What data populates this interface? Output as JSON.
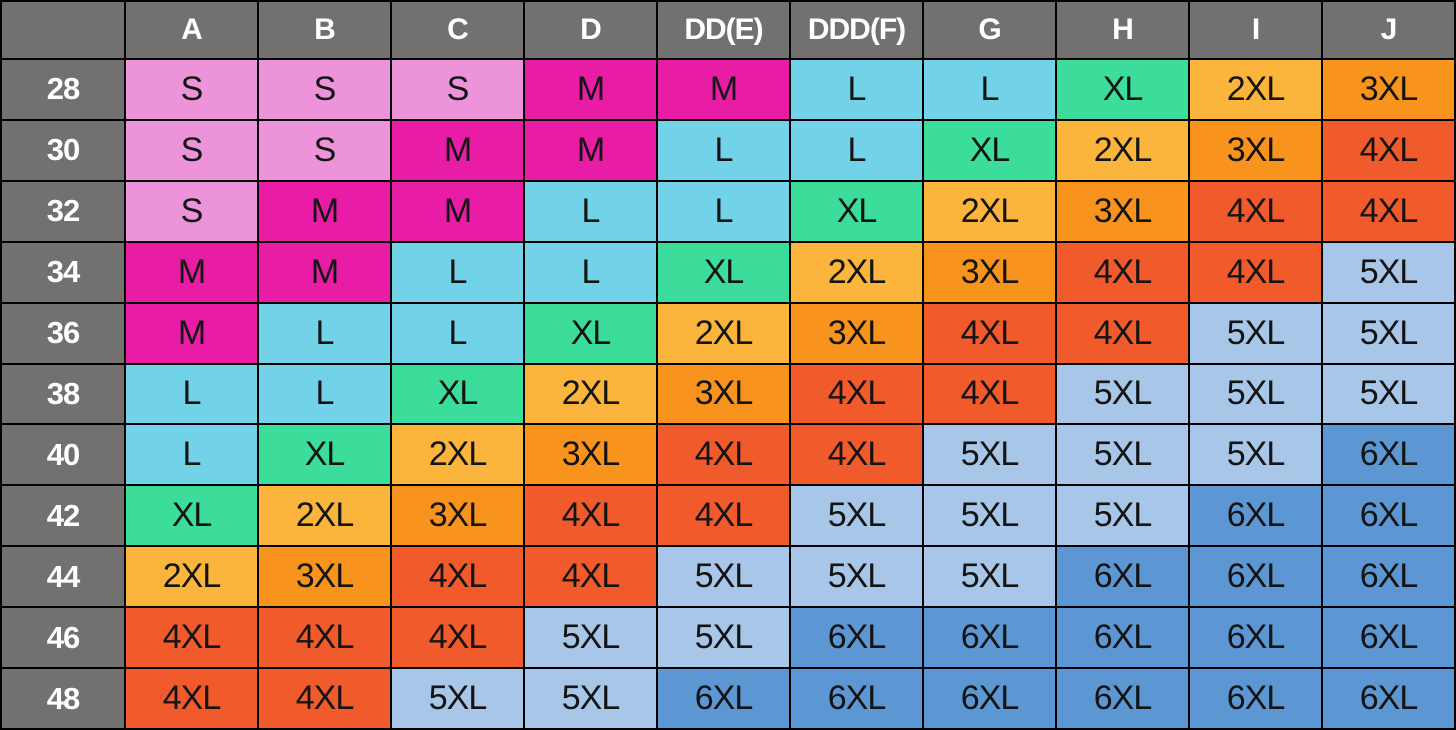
{
  "chart_data": {
    "type": "table",
    "column_headers": [
      "A",
      "B",
      "C",
      "D",
      "DD(E)",
      "DDD(F)",
      "G",
      "H",
      "I",
      "J"
    ],
    "row_headers": [
      "28",
      "30",
      "32",
      "34",
      "36",
      "38",
      "40",
      "42",
      "44",
      "46",
      "48"
    ],
    "matrix": [
      [
        "S",
        "S",
        "S",
        "M",
        "M",
        "L",
        "L",
        "XL",
        "2XL",
        "3XL"
      ],
      [
        "S",
        "S",
        "M",
        "M",
        "L",
        "L",
        "XL",
        "2XL",
        "3XL",
        "4XL"
      ],
      [
        "S",
        "M",
        "M",
        "L",
        "L",
        "XL",
        "2XL",
        "3XL",
        "4XL",
        "4XL"
      ],
      [
        "M",
        "M",
        "L",
        "L",
        "XL",
        "2XL",
        "3XL",
        "4XL",
        "4XL",
        "5XL"
      ],
      [
        "M",
        "L",
        "L",
        "XL",
        "2XL",
        "3XL",
        "4XL",
        "4XL",
        "5XL",
        "5XL"
      ],
      [
        "L",
        "L",
        "XL",
        "2XL",
        "3XL",
        "4XL",
        "4XL",
        "5XL",
        "5XL",
        "5XL"
      ],
      [
        "L",
        "XL",
        "2XL",
        "3XL",
        "4XL",
        "4XL",
        "5XL",
        "5XL",
        "5XL",
        "6XL"
      ],
      [
        "XL",
        "2XL",
        "3XL",
        "4XL",
        "4XL",
        "5XL",
        "5XL",
        "5XL",
        "6XL",
        "6XL"
      ],
      [
        "2XL",
        "3XL",
        "4XL",
        "4XL",
        "5XL",
        "5XL",
        "5XL",
        "6XL",
        "6XL",
        "6XL"
      ],
      [
        "4XL",
        "4XL",
        "4XL",
        "5XL",
        "5XL",
        "6XL",
        "6XL",
        "6XL",
        "6XL",
        "6XL"
      ],
      [
        "4XL",
        "4XL",
        "5XL",
        "5XL",
        "6XL",
        "6XL",
        "6XL",
        "6XL",
        "6XL",
        "6XL"
      ]
    ],
    "size_colors": {
      "S": "#ec93da",
      "M": "#e91ca6",
      "L": "#72d3e8",
      "XL": "#3cdc9a",
      "2XL": "#fbb53c",
      "3XL": "#f8941d",
      "4XL": "#f15a2b",
      "5XL": "#a8c6e8",
      "6XL": "#5c97d4"
    },
    "corner_label": ""
  },
  "colors": {
    "header_bg": "#737070",
    "header_text": "#ffffff",
    "cell_text": "#141414",
    "grid": "#000000"
  }
}
